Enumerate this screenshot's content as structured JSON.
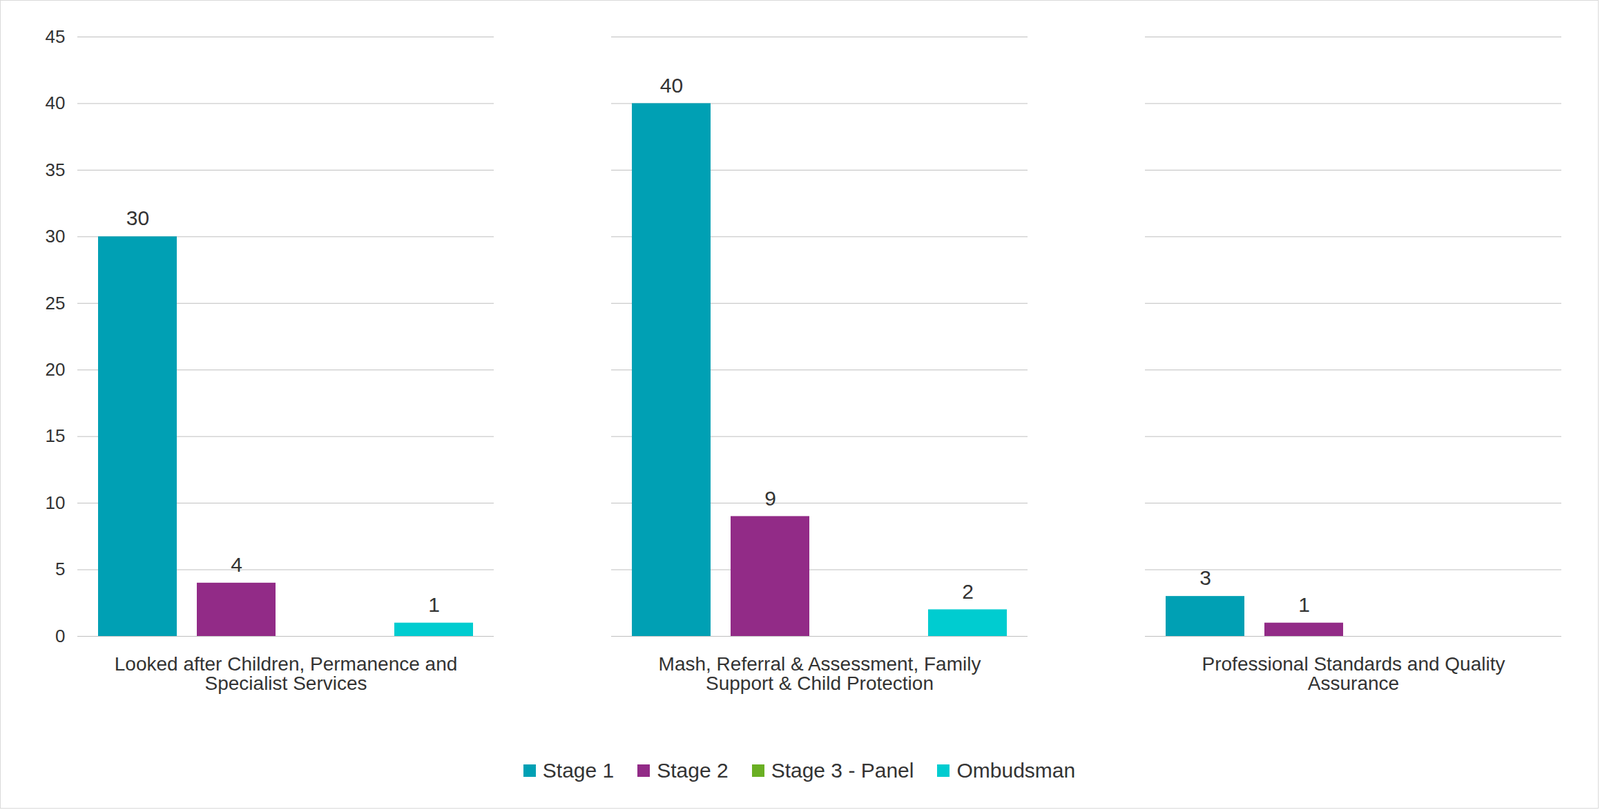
{
  "chart_data": {
    "type": "bar",
    "categories": [
      "Looked after Children, Permanence and Specialist Services",
      "Mash, Referral & Assessment, Family Support & Child Protection",
      "Professional Standards and Quality Assurance"
    ],
    "series": [
      {
        "name": "Stage 1",
        "color": "#00A0B4",
        "values": [
          30,
          40,
          3
        ]
      },
      {
        "name": "Stage 2",
        "color": "#922B87",
        "values": [
          4,
          9,
          1
        ]
      },
      {
        "name": "Stage 3 - Panel",
        "color": "#6AAF23",
        "values": [
          null,
          null,
          null
        ]
      },
      {
        "name": "Ombudsman",
        "color": "#00CCD0",
        "values": [
          1,
          2,
          null
        ]
      }
    ],
    "ylim": [
      0,
      45
    ],
    "yticks": [
      0,
      5,
      10,
      15,
      20,
      25,
      30,
      35,
      40,
      45
    ],
    "grid": true,
    "legend": "bottom",
    "data_labels": true
  }
}
